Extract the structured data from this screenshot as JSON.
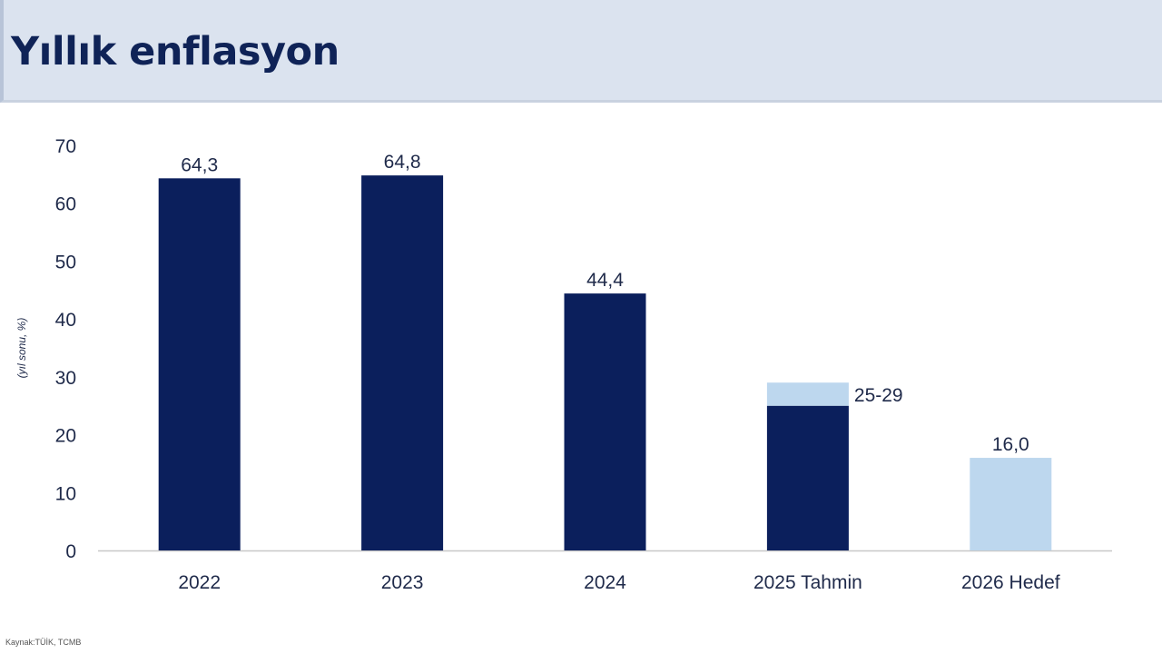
{
  "title": "Yıllık enflasyon",
  "source": "Kaynak:TÜİK, TCMB",
  "colors": {
    "actual": "#0b1f5c",
    "range_or_target": "#bdd7ee",
    "text": "#1f2a4a",
    "header_bg": "#dbe3ef"
  },
  "chart_data": {
    "type": "bar",
    "title": "",
    "ylabel": "(yıl sonu, %)",
    "xlabel": "",
    "ylim": [
      0,
      70
    ],
    "yticks": [
      0,
      10,
      20,
      30,
      40,
      50,
      60,
      70
    ],
    "grid": false,
    "categories": [
      "2022",
      "2023",
      "2024",
      "2025 Tahmin",
      "2026 Hedef"
    ],
    "bars": [
      {
        "category": "2022",
        "low": 64.3,
        "high": 64.3,
        "label": "64,3",
        "style": "actual"
      },
      {
        "category": "2023",
        "low": 64.8,
        "high": 64.8,
        "label": "64,8",
        "style": "actual"
      },
      {
        "category": "2024",
        "low": 44.4,
        "high": 44.4,
        "label": "44,4",
        "style": "actual"
      },
      {
        "category": "2025 Tahmin",
        "low": 25,
        "high": 29,
        "label": "25-29",
        "style": "range"
      },
      {
        "category": "2026 Hedef",
        "low": 0,
        "high": 16.0,
        "label": "16,0",
        "style": "target"
      }
    ]
  }
}
